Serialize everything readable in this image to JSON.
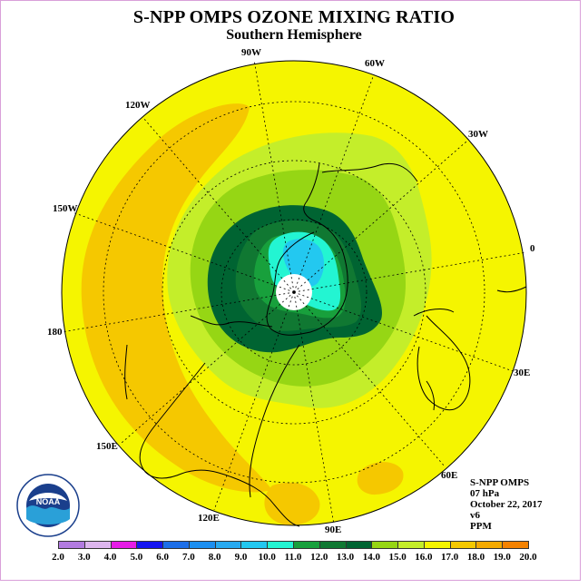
{
  "title": "S-NPP OMPS OZONE MIXING RATIO",
  "subtitle": "Southern Hemisphere",
  "longitude_labels": [
    "90W",
    "60W",
    "30W",
    "0",
    "30E",
    "60E",
    "90E",
    "120E",
    "150E",
    "180",
    "150W",
    "120W"
  ],
  "info": {
    "instrument": "S-NPP OMPS",
    "level": "07 hPa",
    "date": "October 22, 2017",
    "version": "v6",
    "units": "PPM"
  },
  "logo_text": "NOAA",
  "colorbar": {
    "ticks": [
      "2.0",
      "3.0",
      "4.0",
      "5.0",
      "6.0",
      "7.0",
      "8.0",
      "9.0",
      "10.0",
      "11.0",
      "12.0",
      "13.0",
      "14.0",
      "15.0",
      "16.0",
      "17.0",
      "18.0",
      "19.0",
      "20.0"
    ],
    "colors": [
      "#b27be0",
      "#ddb6ee",
      "#e61ce6",
      "#1414f0",
      "#1c6ee8",
      "#1c8ff0",
      "#28aaf0",
      "#23c8f0",
      "#23f5d2",
      "#18a03c",
      "#107832",
      "#006432",
      "#96d614",
      "#c4ee2a",
      "#f5f500",
      "#f5c800",
      "#f5aa00",
      "#f58200",
      "#f54a00",
      "#e60000",
      "#8c5a3c"
    ]
  },
  "map_colors": {
    "background_field": "#f5f500",
    "band_16": "#f5c800",
    "band_14": "#c4ee2a",
    "band_13": "#96d614",
    "band_12": "#006432",
    "band_11": "#107832",
    "band_10": "#18a03c",
    "band_9": "#23f5d2",
    "band_8": "#23c8f0"
  }
}
